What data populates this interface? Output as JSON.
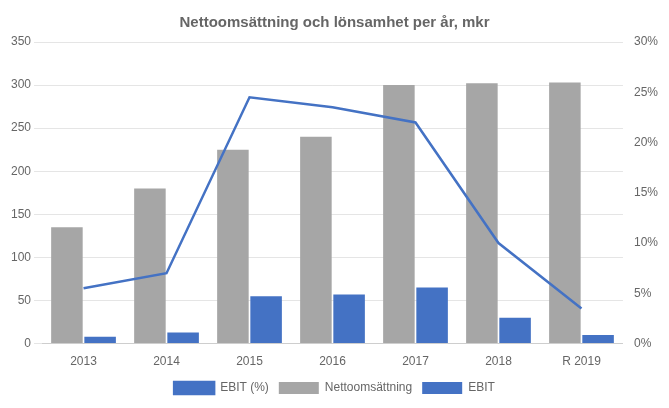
{
  "chart_data": {
    "type": "bar",
    "title": "Nettoomsättning och lönsamhet per år, mkr",
    "categories": [
      "2013",
      "2014",
      "2015",
      "2016",
      "2017",
      "2018",
      "R 2019"
    ],
    "series": [
      {
        "name": "Nettoomsättning",
        "color": "#a6a6a6",
        "values": [
          135,
          180,
          225,
          240,
          300,
          302,
          303
        ]
      },
      {
        "name": "EBIT",
        "color": "#4472c4",
        "values": [
          8,
          13,
          55,
          57,
          65,
          30,
          10
        ]
      },
      {
        "name": "EBIT (%)",
        "color": "#4472c4",
        "type": "line",
        "axis": "y2",
        "values": [
          5.5,
          7.0,
          24.5,
          23.5,
          22.0,
          10.0,
          3.5
        ]
      }
    ],
    "ylim": [
      0,
      350
    ],
    "yticks": [
      0,
      50,
      100,
      150,
      200,
      250,
      300,
      350
    ],
    "y2lim": [
      0,
      30
    ],
    "y2ticks": [
      {
        "value": 0,
        "label": "0%"
      },
      {
        "value": 5,
        "label": "5%"
      },
      {
        "value": 10,
        "label": "10%"
      },
      {
        "value": 15,
        "label": "15%"
      },
      {
        "value": 20,
        "label": "20%"
      },
      {
        "value": 25,
        "label": "25%"
      },
      {
        "value": 30,
        "label": "30%"
      }
    ],
    "grid": true,
    "legend": "bottom"
  }
}
